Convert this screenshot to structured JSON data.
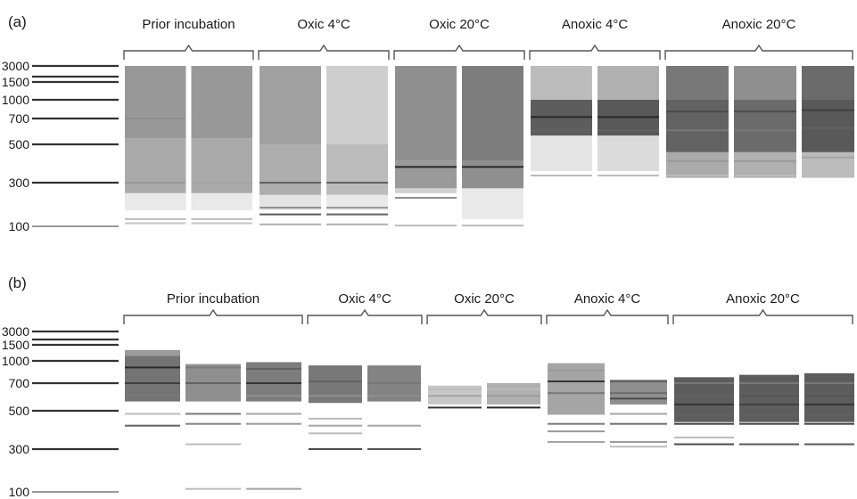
{
  "panels": [
    {
      "id": "a",
      "label": "(a)",
      "ladder": [
        {
          "bp": "3000"
        },
        {
          "bp": "1500"
        },
        {
          "bp": "1000"
        },
        {
          "bp": "700"
        },
        {
          "bp": "500"
        },
        {
          "bp": "300"
        },
        {
          "bp": "100"
        }
      ],
      "groups": [
        {
          "name": "Prior incubation",
          "lanes": [
            {
              "smear": [
                [
                  540,
                  3000,
                  0.46
                ],
                [
                  230,
                  540,
                  0.38
                ],
                [
                  150,
                  230,
                  0.1
                ]
              ],
              "bands": [
                [
                  700,
                  0.5
                ],
                [
                  300,
                  0.45
                ],
                [
                  120,
                  0.3
                ],
                [
                  108,
                  0.25
                ]
              ]
            },
            {
              "smear": [
                [
                  540,
                  3000,
                  0.46
                ],
                [
                  230,
                  540,
                  0.38
                ],
                [
                  150,
                  230,
                  0.1
                ]
              ],
              "bands": [
                [
                  700,
                  0.45
                ],
                [
                  300,
                  0.4
                ],
                [
                  120,
                  0.3
                ],
                [
                  108,
                  0.25
                ]
              ]
            }
          ]
        },
        {
          "name": "Oxic 4°C",
          "lanes": [
            {
              "smear": [
                [
                  500,
                  3000,
                  0.42
                ],
                [
                  220,
                  500,
                  0.36
                ],
                [
                  150,
                  220,
                  0.12
                ]
              ],
              "bands": [
                [
                  300,
                  0.7
                ],
                [
                  160,
                  0.5
                ],
                [
                  135,
                  0.75
                ],
                [
                  105,
                  0.35
                ]
              ]
            },
            {
              "smear": [
                [
                  500,
                  3000,
                  0.22
                ],
                [
                  220,
                  500,
                  0.3
                ],
                [
                  150,
                  220,
                  0.1
                ]
              ],
              "bands": [
                [
                  300,
                  0.7
                ],
                [
                  160,
                  0.45
                ],
                [
                  135,
                  0.7
                ],
                [
                  105,
                  0.35
                ]
              ]
            }
          ]
        },
        {
          "name": "Oxic 20°C",
          "lanes": [
            {
              "smear": [
                [
                  400,
                  3000,
                  0.5
                ],
                [
                  260,
                  400,
                  0.45
                ],
                [
                  230,
                  260,
                  0.2
                ]
              ],
              "bands": [
                [
                  370,
                  0.95
                ],
                [
                  205,
                  0.5
                ],
                [
                  102,
                  0.3
                ]
              ]
            },
            {
              "smear": [
                [
                  400,
                  3000,
                  0.58
                ],
                [
                  260,
                  400,
                  0.5
                ],
                [
                  120,
                  260,
                  0.1
                ]
              ],
              "bands": [
                [
                  370,
                  0.95
                ],
                [
                  102,
                  0.3
                ]
              ]
            }
          ]
        },
        {
          "name": "Anoxic 4°C",
          "lanes": [
            {
              "smear": [
                [
                  1000,
                  3000,
                  0.3
                ],
                [
                  560,
                  1000,
                  0.72
                ],
                [
                  350,
                  560,
                  0.12
                ]
              ],
              "bands": [
                [
                  720,
                  0.95
                ],
                [
                  600,
                  0.7
                ],
                [
                  330,
                  0.3
                ]
              ]
            },
            {
              "smear": [
                [
                  1000,
                  3000,
                  0.35
                ],
                [
                  560,
                  1000,
                  0.74
                ],
                [
                  350,
                  560,
                  0.16
                ]
              ],
              "bands": [
                [
                  720,
                  0.95
                ],
                [
                  600,
                  0.7
                ],
                [
                  330,
                  0.3
                ]
              ]
            }
          ]
        },
        {
          "name": "Anoxic 20°C",
          "lanes": [
            {
              "smear": [
                [
                  1000,
                  3000,
                  0.6
                ],
                [
                  450,
                  1000,
                  0.7
                ],
                [
                  320,
                  450,
                  0.38
                ]
              ],
              "bands": [
                [
                  800,
                  0.8
                ],
                [
                  600,
                  0.6
                ],
                [
                  400,
                  0.45
                ],
                [
                  330,
                  0.3
                ]
              ]
            },
            {
              "smear": [
                [
                  1000,
                  3000,
                  0.5
                ],
                [
                  450,
                  1000,
                  0.66
                ],
                [
                  320,
                  450,
                  0.35
                ]
              ],
              "bands": [
                [
                  800,
                  0.8
                ],
                [
                  600,
                  0.6
                ],
                [
                  400,
                  0.45
                ],
                [
                  330,
                  0.3
                ]
              ]
            },
            {
              "smear": [
                [
                  1000,
                  3000,
                  0.66
                ],
                [
                  450,
                  1000,
                  0.74
                ],
                [
                  320,
                  450,
                  0.3
                ]
              ],
              "bands": [
                [
                  820,
                  0.85
                ],
                [
                  620,
                  0.7
                ],
                [
                  420,
                  0.4
                ]
              ]
            }
          ]
        }
      ]
    },
    {
      "id": "b",
      "label": "(b)",
      "ladder": [
        {
          "bp": "3000"
        },
        {
          "bp": "1500"
        },
        {
          "bp": "1000"
        },
        {
          "bp": "700"
        },
        {
          "bp": "500"
        },
        {
          "bp": "300"
        },
        {
          "bp": "100"
        }
      ],
      "groups": [
        {
          "name": "Prior incubation",
          "lanes": [
            {
              "smear": [
                [
                  1200,
                  1500,
                  0.45
                ],
                [
                  560,
                  1200,
                  0.62
                ]
              ],
              "bands": [
                [
                  900,
                  0.95
                ],
                [
                  700,
                  0.85
                ],
                [
                  600,
                  0.6
                ],
                [
                  480,
                  0.3
                ],
                [
                  410,
                  0.7
                ]
              ]
            },
            {
              "smear": [
                [
                  560,
                  950,
                  0.5
                ]
              ],
              "bands": [
                [
                  900,
                  0.6
                ],
                [
                  700,
                  0.7
                ],
                [
                  600,
                  0.5
                ],
                [
                  480,
                  0.6
                ],
                [
                  420,
                  0.55
                ],
                [
                  320,
                  0.3
                ],
                [
                  108,
                  0.3
                ]
              ]
            },
            {
              "smear": [
                [
                  560,
                  980,
                  0.58
                ]
              ],
              "bands": [
                [
                  880,
                  0.7
                ],
                [
                  700,
                  0.9
                ],
                [
                  600,
                  0.5
                ],
                [
                  480,
                  0.4
                ],
                [
                  420,
                  0.45
                ],
                [
                  108,
                  0.4
                ]
              ]
            }
          ]
        },
        {
          "name": "Oxic 4°C",
          "lanes": [
            {
              "smear": [
                [
                  550,
                  930,
                  0.6
                ]
              ],
              "bands": [
                [
                  720,
                  0.7
                ],
                [
                  600,
                  0.5
                ],
                [
                  450,
                  0.3
                ],
                [
                  410,
                  0.4
                ],
                [
                  370,
                  0.3
                ],
                [
                  300,
                  0.8
                ]
              ]
            },
            {
              "smear": [
                [
                  560,
                  930,
                  0.55
                ]
              ],
              "bands": [
                [
                  700,
                  0.6
                ],
                [
                  600,
                  0.5
                ],
                [
                  410,
                  0.4
                ],
                [
                  300,
                  0.75
                ]
              ]
            }
          ]
        },
        {
          "name": "Oxic 20°C",
          "lanes": [
            {
              "smear": [
                [
                  540,
                  680,
                  0.25
                ]
              ],
              "bands": [
                [
                  650,
                  0.3
                ],
                [
                  600,
                  0.4
                ],
                [
                  520,
                  0.9
                ]
              ]
            },
            {
              "smear": [
                [
                  540,
                  700,
                  0.35
                ]
              ],
              "bands": [
                [
                  650,
                  0.3
                ],
                [
                  600,
                  0.45
                ],
                [
                  520,
                  0.95
                ]
              ]
            }
          ]
        },
        {
          "name": "Anoxic 4°C",
          "lanes": [
            {
              "smear": [
                [
                  480,
                  950,
                  0.4
                ]
              ],
              "bands": [
                [
                  950,
                  0.4
                ],
                [
                  860,
                  0.45
                ],
                [
                  720,
                  0.9
                ],
                [
                  620,
                  0.6
                ],
                [
                  560,
                  0.4
                ],
                [
                  480,
                  0.4
                ],
                [
                  420,
                  0.6
                ],
                [
                  380,
                  0.45
                ],
                [
                  330,
                  0.4
                ]
              ]
            },
            {
              "smear": [
                [
                  540,
                  740,
                  0.5
                ]
              ],
              "bands": [
                [
                  720,
                  0.7
                ],
                [
                  620,
                  0.65
                ],
                [
                  580,
                  0.8
                ],
                [
                  480,
                  0.4
                ],
                [
                  420,
                  0.65
                ],
                [
                  330,
                  0.45
                ],
                [
                  310,
                  0.3
                ]
              ]
            }
          ]
        },
        {
          "name": "Anoxic 20°C",
          "lanes": [
            {
              "smear": [
                [
                  430,
                  770,
                  0.72
                ]
              ],
              "bands": [
                [
                  700,
                  0.6
                ],
                [
                  600,
                  0.7
                ],
                [
                  540,
                  0.9
                ],
                [
                  470,
                  0.7
                ],
                [
                  420,
                  0.85
                ],
                [
                  350,
                  0.3
                ],
                [
                  320,
                  0.8
                ]
              ]
            },
            {
              "smear": [
                [
                  430,
                  800,
                  0.72
                ]
              ],
              "bands": [
                [
                  700,
                  0.6
                ],
                [
                  600,
                  0.75
                ],
                [
                  540,
                  0.85
                ],
                [
                  470,
                  0.7
                ],
                [
                  420,
                  0.85
                ],
                [
                  320,
                  0.75
                ]
              ]
            },
            {
              "smear": [
                [
                  430,
                  820,
                  0.72
                ]
              ],
              "bands": [
                [
                  700,
                  0.6
                ],
                [
                  600,
                  0.75
                ],
                [
                  540,
                  0.9
                ],
                [
                  470,
                  0.7
                ],
                [
                  420,
                  0.85
                ],
                [
                  320,
                  0.75
                ]
              ]
            }
          ]
        }
      ]
    }
  ]
}
